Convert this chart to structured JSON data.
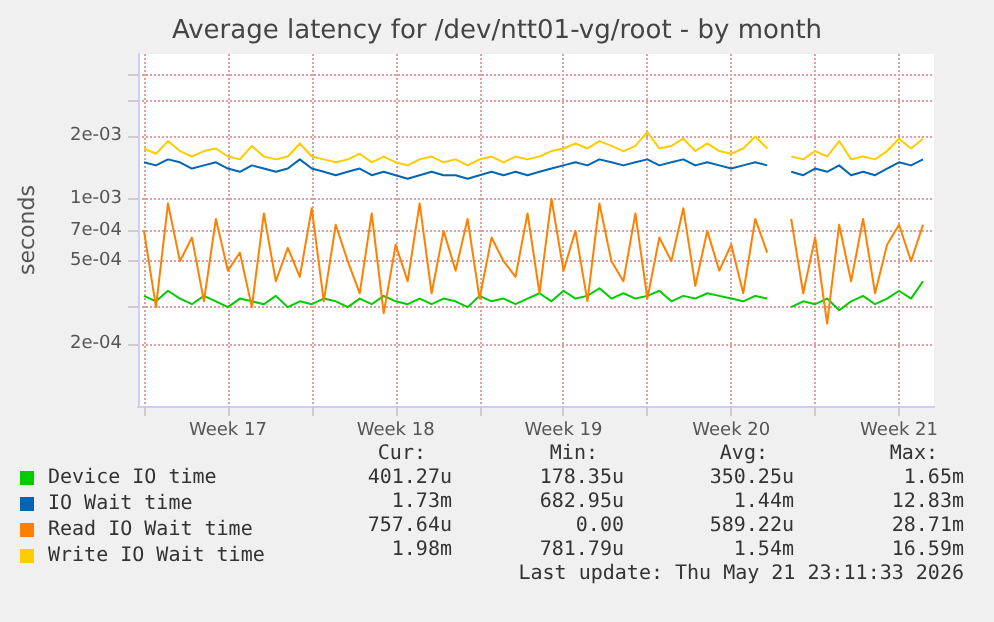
{
  "chart_data": {
    "type": "line",
    "title": "Average latency for /dev/ntt01-vg/root - by month",
    "ylabel": "seconds",
    "log": true,
    "grid": true,
    "legend": "bottom left",
    "marker": "none",
    "line_style": "solid",
    "ylim": [
      0.0001,
      0.005
    ],
    "yticks": [
      {
        "value": 0.0002,
        "label": "2e-04"
      },
      {
        "value": 0.0003,
        "label": null
      },
      {
        "value": 0.0005,
        "label": "5e-04"
      },
      {
        "value": 0.0007,
        "label": "7e-04"
      },
      {
        "value": 0.001,
        "label": "1e-03"
      },
      {
        "value": 0.002,
        "label": "2e-03"
      },
      {
        "value": 0.003,
        "label": null
      },
      {
        "value": 0.004,
        "label": null
      }
    ],
    "xlim": [
      "2026-04-18T18:00",
      "2026-05-21T23:00"
    ],
    "xticks": [
      {
        "value": "2026-04-19",
        "label": null
      },
      {
        "value": "2026-04-22T12:00",
        "label": "Week 17"
      },
      {
        "value": "2026-04-26",
        "label": null
      },
      {
        "value": "2026-04-29T12:00",
        "label": "Week 18"
      },
      {
        "value": "2026-05-03",
        "label": null
      },
      {
        "value": "2026-05-06T12:00",
        "label": "Week 19"
      },
      {
        "value": "2026-05-10",
        "label": null
      },
      {
        "value": "2026-05-13T12:00",
        "label": "Week 20"
      },
      {
        "value": "2026-05-17",
        "label": null
      },
      {
        "value": "2026-05-20T12:00",
        "label": "Week 21"
      }
    ],
    "x": [
      "2026-04-19T00:00",
      "2026-04-19T12:00",
      "2026-04-20T00:00",
      "2026-04-20T12:00",
      "2026-04-21T00:00",
      "2026-04-21T12:00",
      "2026-04-22T00:00",
      "2026-04-22T12:00",
      "2026-04-23T00:00",
      "2026-04-23T12:00",
      "2026-04-24T00:00",
      "2026-04-24T12:00",
      "2026-04-25T00:00",
      "2026-04-25T12:00",
      "2026-04-26T00:00",
      "2026-04-26T12:00",
      "2026-04-27T00:00",
      "2026-04-27T12:00",
      "2026-04-28T00:00",
      "2026-04-28T12:00",
      "2026-04-29T00:00",
      "2026-04-29T12:00",
      "2026-04-30T00:00",
      "2026-04-30T12:00",
      "2026-05-01T00:00",
      "2026-05-01T12:00",
      "2026-05-02T00:00",
      "2026-05-02T12:00",
      "2026-05-03T00:00",
      "2026-05-03T12:00",
      "2026-05-04T00:00",
      "2026-05-04T12:00",
      "2026-05-05T00:00",
      "2026-05-05T12:00",
      "2026-05-06T00:00",
      "2026-05-06T12:00",
      "2026-05-07T00:00",
      "2026-05-07T12:00",
      "2026-05-08T00:00",
      "2026-05-08T12:00",
      "2026-05-09T00:00",
      "2026-05-09T12:00",
      "2026-05-10T00:00",
      "2026-05-10T12:00",
      "2026-05-11T00:00",
      "2026-05-11T12:00",
      "2026-05-12T00:00",
      "2026-05-12T12:00",
      "2026-05-13T00:00",
      "2026-05-13T12:00",
      "2026-05-14T00:00",
      "2026-05-14T12:00",
      "2026-05-15T00:00",
      "2026-05-15T12:00",
      "2026-05-16T00:00",
      "2026-05-16T12:00",
      "2026-05-17T00:00",
      "2026-05-17T12:00",
      "2026-05-18T00:00",
      "2026-05-18T12:00",
      "2026-05-19T00:00",
      "2026-05-19T12:00",
      "2026-05-20T00:00",
      "2026-05-20T12:00",
      "2026-05-21T00:00",
      "2026-05-21T12:00"
    ],
    "series": [
      {
        "name": "Device IO time",
        "color": "#00cc00",
        "values": [
          0.00034,
          0.00032,
          0.00036,
          0.00033,
          0.00031,
          0.00034,
          0.00032,
          0.0003,
          0.00033,
          0.00032,
          0.00031,
          0.00034,
          0.0003,
          0.00032,
          0.00031,
          0.00033,
          0.00032,
          0.0003,
          0.00033,
          0.00031,
          0.00034,
          0.00032,
          0.00031,
          0.00033,
          0.00031,
          0.00033,
          0.00032,
          0.0003,
          0.00034,
          0.00032,
          0.00033,
          0.00031,
          0.00033,
          0.00035,
          0.00032,
          0.00036,
          0.00033,
          0.00034,
          0.00037,
          0.00033,
          0.00035,
          0.00033,
          0.00034,
          0.00036,
          0.00032,
          0.00034,
          0.00033,
          0.00035,
          0.00034,
          0.00033,
          0.00032,
          0.00034,
          0.00033,
          null,
          0.0003,
          0.00032,
          0.00031,
          0.00033,
          0.00029,
          0.00032,
          0.00034,
          0.00031,
          0.00033,
          0.00036,
          0.00033,
          0.0004
        ]
      },
      {
        "name": "IO Wait time",
        "color": "#0066b3",
        "values": [
          0.0015,
          0.00145,
          0.00155,
          0.0015,
          0.0014,
          0.00145,
          0.0015,
          0.0014,
          0.00135,
          0.00145,
          0.0014,
          0.00135,
          0.0014,
          0.00155,
          0.0014,
          0.00135,
          0.0013,
          0.00135,
          0.0014,
          0.0013,
          0.00135,
          0.0013,
          0.00125,
          0.0013,
          0.00135,
          0.0013,
          0.0013,
          0.00125,
          0.0013,
          0.00135,
          0.0013,
          0.00135,
          0.0013,
          0.00135,
          0.0014,
          0.00145,
          0.0015,
          0.00145,
          0.00155,
          0.0015,
          0.00145,
          0.0015,
          0.00155,
          0.00145,
          0.0015,
          0.00155,
          0.00145,
          0.0015,
          0.00145,
          0.0014,
          0.00145,
          0.0015,
          0.00145,
          null,
          0.00135,
          0.0013,
          0.0014,
          0.00135,
          0.00145,
          0.0013,
          0.00135,
          0.0013,
          0.0014,
          0.0015,
          0.00145,
          0.00155
        ]
      },
      {
        "name": "Read IO Wait time",
        "color": "#ff8000",
        "values": [
          0.0007,
          0.0003,
          0.00095,
          0.0005,
          0.00065,
          0.00032,
          0.0008,
          0.00045,
          0.00055,
          0.0003,
          0.00085,
          0.0004,
          0.00058,
          0.00042,
          0.0009,
          0.00032,
          0.00075,
          0.0005,
          0.00035,
          0.00085,
          0.00028,
          0.0006,
          0.0004,
          0.00095,
          0.00035,
          0.0007,
          0.00045,
          0.0008,
          0.00033,
          0.00065,
          0.0005,
          0.00042,
          0.00085,
          0.00035,
          0.001,
          0.00045,
          0.0007,
          0.00032,
          0.00095,
          0.0005,
          0.0004,
          0.00085,
          0.00033,
          0.00065,
          0.0005,
          0.0009,
          0.00038,
          0.0007,
          0.00045,
          0.0006,
          0.00035,
          0.0008,
          0.00055,
          null,
          0.0008,
          0.00035,
          0.00065,
          0.00025,
          0.00075,
          0.0004,
          0.0008,
          0.00035,
          0.0006,
          0.00075,
          0.0005,
          0.00075
        ]
      },
      {
        "name": "Write IO Wait time",
        "color": "#ffcc00",
        "values": [
          0.00175,
          0.00165,
          0.0019,
          0.0017,
          0.0016,
          0.0017,
          0.00175,
          0.0016,
          0.00155,
          0.0018,
          0.0016,
          0.00155,
          0.0016,
          0.00185,
          0.0016,
          0.00155,
          0.0015,
          0.00155,
          0.00165,
          0.0015,
          0.0016,
          0.0015,
          0.00145,
          0.00155,
          0.0016,
          0.0015,
          0.00155,
          0.00145,
          0.00155,
          0.0016,
          0.0015,
          0.0016,
          0.00155,
          0.0016,
          0.0017,
          0.00175,
          0.00185,
          0.00175,
          0.0019,
          0.0018,
          0.0017,
          0.0018,
          0.0021,
          0.00175,
          0.0018,
          0.00195,
          0.0017,
          0.00185,
          0.0017,
          0.00165,
          0.00175,
          0.002,
          0.00175,
          null,
          0.0016,
          0.00155,
          0.0017,
          0.0016,
          0.0019,
          0.00155,
          0.0016,
          0.00155,
          0.0017,
          0.00195,
          0.00175,
          0.00195
        ]
      }
    ],
    "annotations": [
      "Cur:",
      "Min:",
      "Avg:",
      "Max:",
      "401.27u",
      "178.35u",
      "350.25u",
      "1.65m",
      "1.73m",
      "682.95u",
      "1.44m",
      "12.83m",
      "757.64u",
      "0.00",
      "589.22u",
      "28.71m",
      "1.98m",
      "781.79u",
      "1.54m",
      "16.59m",
      "Last update: Thu May 21 23:11:33 2026"
    ]
  }
}
